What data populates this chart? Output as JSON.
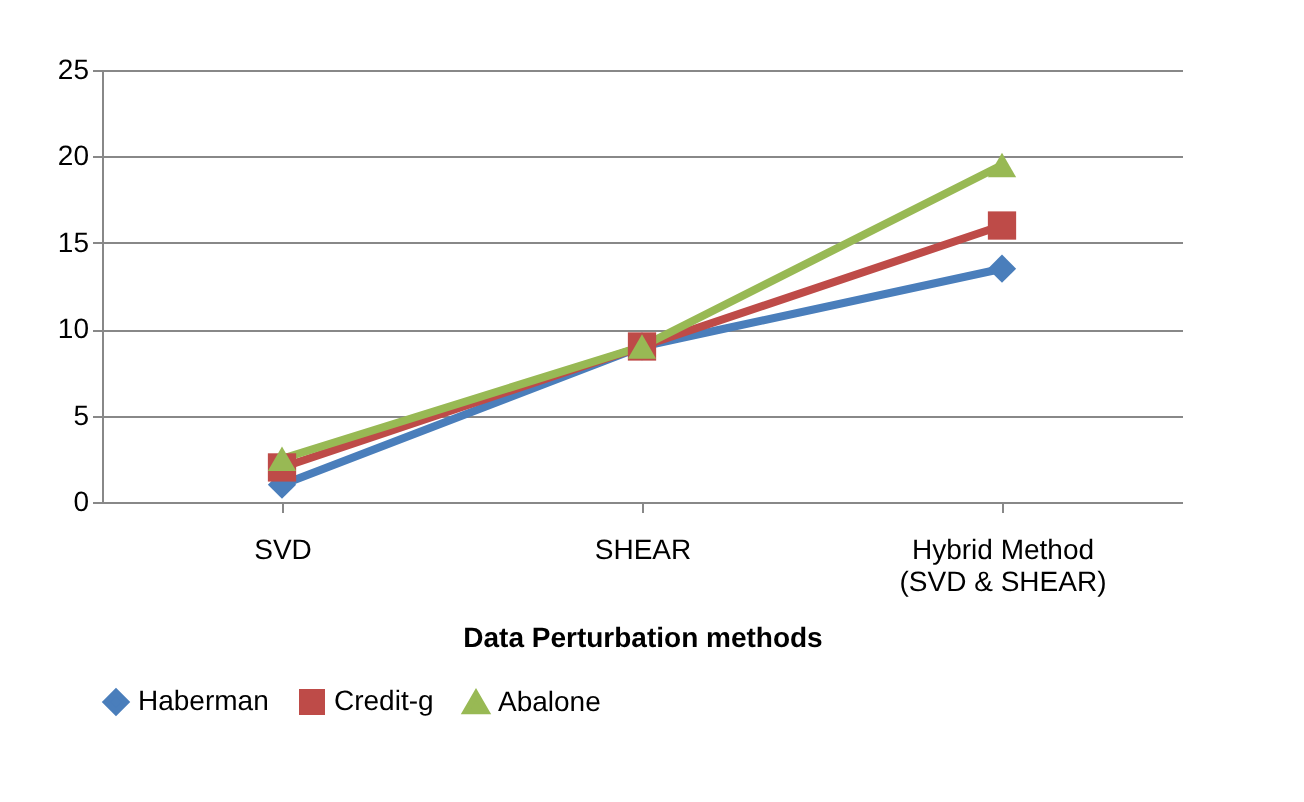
{
  "chart_data": {
    "type": "line",
    "xlabel": "Data Perturbation methods",
    "categories": [
      "SVD",
      "SHEAR",
      "Hybrid Method\n(SVD & SHEAR)"
    ],
    "series": [
      {
        "name": "Haberman",
        "color": "#4a7ebb",
        "marker": "diamond",
        "values": [
          1,
          9,
          13.5
        ]
      },
      {
        "name": "Credit-g",
        "color": "#be4b48",
        "marker": "square",
        "values": [
          2,
          9,
          16
        ]
      },
      {
        "name": "Abalone",
        "color": "#98b954",
        "marker": "triangle",
        "values": [
          2.5,
          9,
          19.5
        ]
      }
    ],
    "ylim": [
      0,
      25
    ],
    "yticks": [
      0,
      5,
      10,
      15,
      20,
      25
    ],
    "grid": "y",
    "legend": "bottom"
  }
}
